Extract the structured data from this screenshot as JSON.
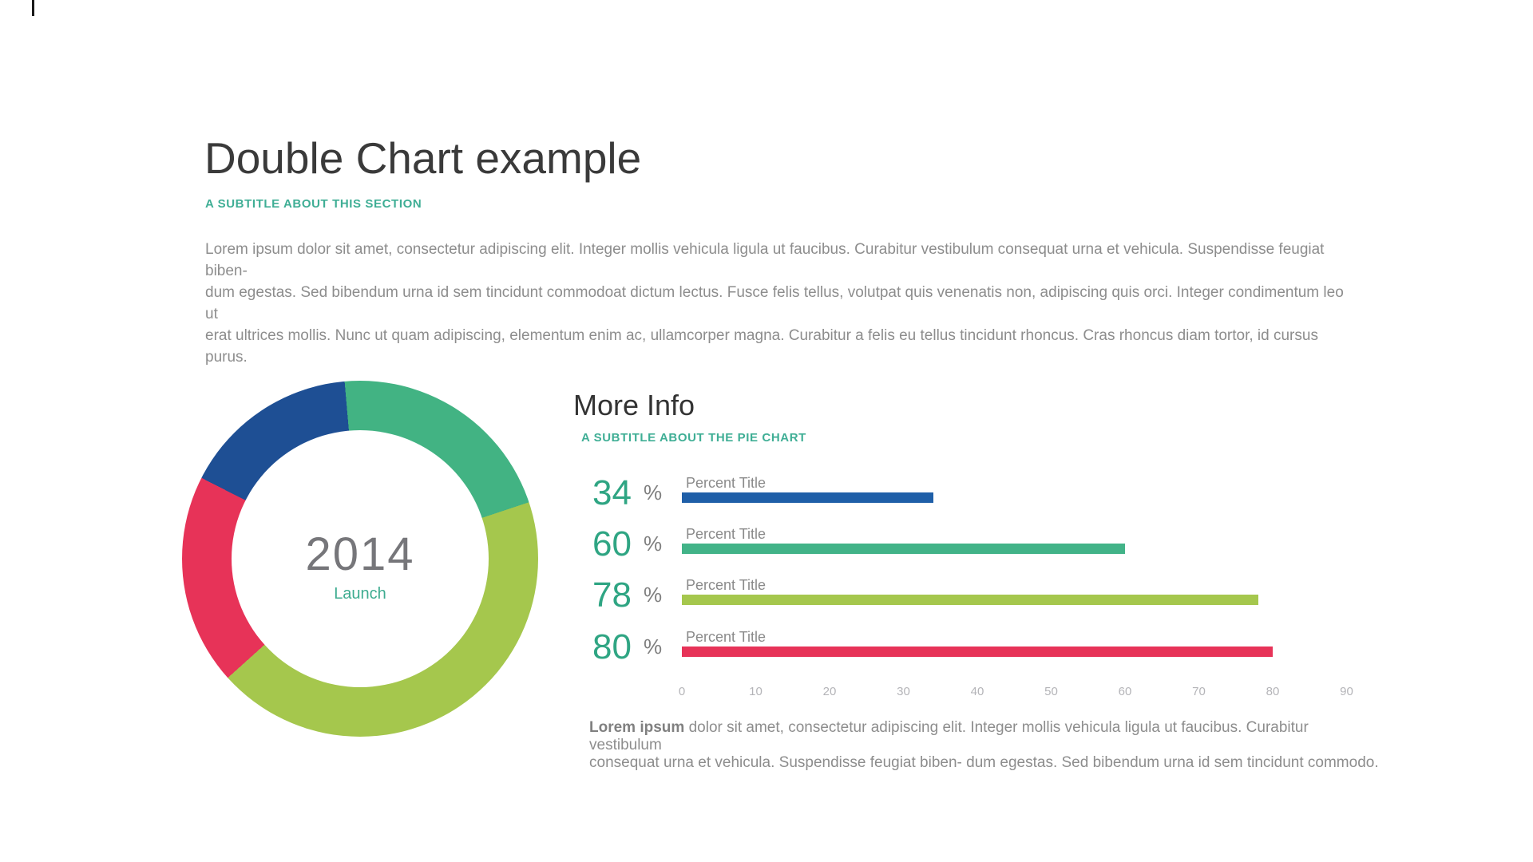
{
  "page": {
    "background": "#ffffff"
  },
  "header": {
    "title": "Double Chart example",
    "subtitle": "A SUBTITLE ABOUT THIS SECTION",
    "paragraph_lines": [
      "Lorem ipsum dolor sit amet, consectetur adipiscing elit. Integer mollis vehicula ligula ut faucibus. Curabitur vestibulum consequat urna et vehicula. Suspendisse feugiat biben-",
      "dum egestas. Sed bibendum urna id sem tincidunt commodoat dictum lectus. Fusce felis tellus, volutpat quis venenatis non, adipiscing quis orci. Integer condimentum leo ut",
      "erat ultrices mollis. Nunc ut quam adipiscing, elementum enim ac, ullamcorper magna. Curabitur a felis eu tellus tincidunt rhoncus. Cras rhoncus diam tortor, id cursus purus."
    ]
  },
  "more_info": {
    "title": "More Info",
    "subtitle": "A SUBTITLE ABOUT THE PIE CHART",
    "unit": "%",
    "footer_lead": "Lorem ipsum",
    "footer_line1_rest": " dolor sit amet, consectetur adipiscing elit. Integer mollis vehicula ligula ut faucibus. Curabitur vestibulum",
    "footer_line2": "consequat urna et vehicula. Suspendisse feugiat biben- dum egestas. Sed bibendum urna id sem tincidunt commodo."
  },
  "colors": {
    "teal_text": "#3fae95",
    "number_green": "#2fa583",
    "gray_text": "#8d8d8d",
    "axis_gray": "#b4b4b8",
    "donut_blue": "#1e4f94",
    "donut_green": "#42b383",
    "donut_light_green": "#a5c74d",
    "donut_red": "#e73358"
  },
  "chart_data": [
    {
      "type": "pie",
      "subtype": "donut",
      "center_title": "2014",
      "center_subtitle": "Launch",
      "legend_position": "none",
      "segments": [
        {
          "label": "green",
          "color": "#42b383",
          "start_deg_from_top": -5,
          "end_deg_from_top": 71.5,
          "percent_of_circle": 21.3
        },
        {
          "label": "light-green",
          "color": "#a5c74d",
          "start_deg_from_top": 71.5,
          "end_deg_from_top": 228,
          "percent_of_circle": 43.4
        },
        {
          "label": "red",
          "color": "#e73358",
          "start_deg_from_top": 228,
          "end_deg_from_top": 297,
          "percent_of_circle": 19.2
        },
        {
          "label": "blue",
          "color": "#1e4f94",
          "start_deg_from_top": 297,
          "end_deg_from_top": 355,
          "percent_of_circle": 16.1
        }
      ]
    },
    {
      "type": "bar",
      "orientation": "horizontal",
      "categories": [
        "Percent Title",
        "Percent Title",
        "Percent Title",
        "Percent Title"
      ],
      "values": [
        34,
        60,
        78,
        80
      ],
      "value_labels": [
        "34 %",
        "60 %",
        "78 %",
        "80 %"
      ],
      "bar_colors": [
        "#1f5fa8",
        "#42b388",
        "#a5c74d",
        "#e73358"
      ],
      "xlim": [
        0,
        90
      ],
      "x_ticks": [
        0,
        10,
        20,
        30,
        40,
        50,
        60,
        70,
        80,
        90
      ],
      "grid": false,
      "title": "More Info",
      "subtitle": "A SUBTITLE ABOUT THE PIE CHART"
    }
  ]
}
